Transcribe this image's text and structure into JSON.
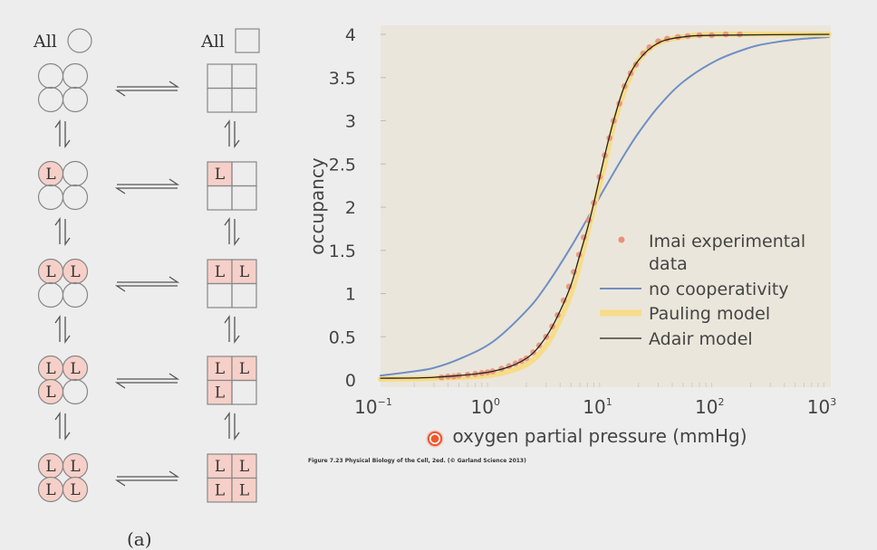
{
  "diagram": {
    "all_circle_label": "All",
    "all_square_label": "All",
    "ligand_label": "L",
    "states": [
      0,
      1,
      2,
      3,
      4
    ],
    "part_label": "(a)",
    "fill_color": "#f6d0c8"
  },
  "caption": "Figure 7.23  Physical Biology of the Cell, 2ed. (© Garland Science 2013)",
  "chart_data": {
    "type": "line",
    "xlabel": "oxygen partial pressure (mmHg)",
    "ylabel": "occupancy",
    "xscale": "log",
    "xlim": [
      0.1,
      1000
    ],
    "ylim": [
      0,
      4
    ],
    "xticks": [
      {
        "base": "10",
        "exp": "−1"
      },
      {
        "base": "10",
        "exp": "0"
      },
      {
        "base": "10",
        "exp": "1"
      },
      {
        "base": "10",
        "exp": "2"
      },
      {
        "base": "10",
        "exp": "3"
      }
    ],
    "yticks": [
      "0",
      "0.5",
      "1",
      "1.5",
      "2",
      "2.5",
      "3",
      "3.5",
      "4"
    ],
    "background": "#ebe6db",
    "legend_position": "center-right",
    "series": [
      {
        "name": "no cooperativity",
        "color": "#6f8fc4",
        "kind": "line",
        "x": [
          0.1,
          0.2,
          0.3,
          0.5,
          1,
          2,
          3,
          5,
          8,
          10,
          15,
          20,
          30,
          50,
          100,
          200,
          300,
          500,
          1000
        ],
        "y": [
          0.05,
          0.1,
          0.14,
          0.24,
          0.44,
          0.8,
          1.09,
          1.54,
          2.0,
          2.22,
          2.61,
          2.86,
          3.16,
          3.45,
          3.7,
          3.85,
          3.9,
          3.94,
          3.97
        ]
      },
      {
        "name": "Pauling model",
        "color": "#f7dc8a",
        "kind": "thick",
        "x": [
          0.1,
          0.3,
          1,
          2,
          3,
          4,
          5,
          6,
          7,
          8,
          10,
          12,
          15,
          20,
          30,
          50,
          100,
          1000
        ],
        "y": [
          0.01,
          0.02,
          0.06,
          0.18,
          0.4,
          0.7,
          1.0,
          1.35,
          1.7,
          2.0,
          2.5,
          2.95,
          3.35,
          3.7,
          3.9,
          3.97,
          4.0,
          4.0
        ]
      },
      {
        "name": "Adair model",
        "color": "#222222",
        "kind": "line",
        "x": [
          0.1,
          0.3,
          1,
          2,
          3,
          4,
          5,
          6,
          7,
          8,
          10,
          12,
          15,
          20,
          30,
          50,
          100,
          1000
        ],
        "y": [
          0.02,
          0.03,
          0.1,
          0.25,
          0.5,
          0.8,
          1.1,
          1.45,
          1.75,
          2.05,
          2.6,
          3.0,
          3.4,
          3.7,
          3.9,
          3.97,
          3.99,
          4.0
        ]
      },
      {
        "name": "Imai experimental data",
        "color": "#e8917a",
        "kind": "points",
        "x": [
          0.35,
          0.4,
          0.45,
          0.5,
          0.6,
          0.7,
          0.8,
          0.9,
          1.0,
          1.2,
          1.4,
          1.6,
          1.8,
          2.0,
          2.3,
          2.6,
          3.0,
          3.4,
          3.8,
          4.3,
          4.8,
          5.3,
          5.9,
          6.5,
          7.2,
          8,
          9,
          10,
          11,
          12,
          13.5,
          15,
          17,
          19,
          22,
          25,
          30,
          36,
          45,
          55,
          70,
          90,
          120,
          160
        ],
        "y": [
          0.03,
          0.04,
          0.04,
          0.05,
          0.06,
          0.07,
          0.08,
          0.09,
          0.1,
          0.13,
          0.16,
          0.19,
          0.22,
          0.25,
          0.32,
          0.4,
          0.5,
          0.62,
          0.75,
          0.92,
          1.08,
          1.25,
          1.45,
          1.65,
          1.85,
          2.05,
          2.35,
          2.6,
          2.8,
          3.0,
          3.2,
          3.4,
          3.55,
          3.65,
          3.78,
          3.85,
          3.92,
          3.95,
          3.97,
          3.98,
          3.99,
          3.99,
          4.0,
          4.0
        ]
      }
    ],
    "legend": [
      {
        "label_line1": "Imai experimental",
        "label_line2": "data"
      },
      {
        "label_line1": "no cooperativity"
      },
      {
        "label_line1": "Pauling model"
      },
      {
        "label_line1": "Adair model"
      }
    ]
  }
}
